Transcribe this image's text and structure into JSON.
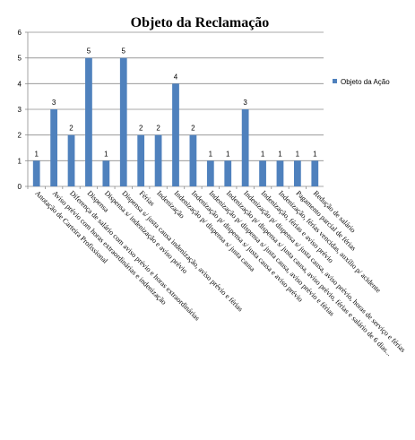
{
  "chart_data": {
    "type": "bar",
    "title": "Objeto da Reclamação",
    "xlabel": "",
    "ylabel": "",
    "ylim": [
      0,
      6
    ],
    "yticks": [
      0,
      1,
      2,
      3,
      4,
      5,
      6
    ],
    "grid": true,
    "legend_position": "right",
    "bar_color": "#4F81BD",
    "series": [
      {
        "name": "Objeto da Ação",
        "values": [
          1,
          3,
          2,
          5,
          1,
          5,
          2,
          2,
          4,
          2,
          1,
          1,
          3,
          1,
          1,
          1,
          1
        ]
      }
    ],
    "categories": [
      "Anotação de Carteira Profissional",
      "Aviso prévio com horas extraordinárias e indenização",
      "Diferença de salário com aviso prévio e horas extraordinárias",
      "Dispensa",
      "Dispensa s/ indenização e aviso prévio",
      "Dispensa s/ justa causa indenização, aviso prévio e férias",
      "Férias",
      "Indenização",
      "Indenização p/ dispensa s/ justa causa",
      "Indenização p/ dispensa s/ justa causa e aviso prévio",
      "Indenização p/ dispensa s/ justa causa, aviso prévio e férias",
      "Indenização p/ dispensa s/ justa causa, aviso prévio, férias e salário de 6 dias...",
      "Indenização p/ dispensa s/ justa causa, aviso prévio, horas de serviço e férias",
      "Indenização, férias e aviso prévio",
      "Indenização, férias vencidas, auxílio p/ acidente",
      "Pagamento parcial de férias",
      "Redução de salário"
    ]
  }
}
